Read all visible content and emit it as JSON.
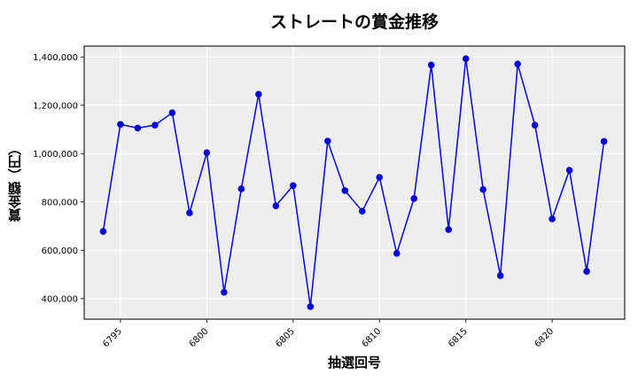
{
  "chart_data": {
    "type": "line",
    "title": "ストレートの賞金推移",
    "xlabel": "抽選回号",
    "ylabel": "賞金額（円）",
    "x": [
      6794,
      6795,
      6796,
      6797,
      6798,
      6799,
      6800,
      6801,
      6802,
      6803,
      6804,
      6805,
      6806,
      6807,
      6808,
      6809,
      6810,
      6811,
      6812,
      6813,
      6814,
      6815,
      6816,
      6817,
      6818,
      6819,
      6820,
      6821,
      6822,
      6823
    ],
    "series": [
      {
        "name": "ストレート",
        "color": "#0000dd",
        "marker": "circle",
        "values": [
          678000,
          1121000,
          1106000,
          1118000,
          1169000,
          755000,
          1004000,
          426000,
          854000,
          1246000,
          784000,
          868000,
          367000,
          1052000,
          847000,
          762000,
          902000,
          587000,
          814000,
          1367000,
          686000,
          1393000,
          852000,
          495000,
          1371000,
          1118000,
          730000,
          931000,
          513000,
          1051000
        ]
      }
    ],
    "xticks": [
      6795,
      6800,
      6805,
      6810,
      6815,
      6820
    ],
    "yticks": [
      400000,
      600000,
      800000,
      1000000,
      1200000,
      1400000
    ],
    "ytick_labels": [
      "400,000",
      "600,000",
      "800,000",
      "1,000,000",
      "1,200,000",
      "1,400,000"
    ],
    "xlim": [
      6792.9,
      6824.2
    ],
    "ylim": [
      315000,
      1445000
    ],
    "grid": true,
    "plot_background": "#eeeeee",
    "legend": null
  }
}
